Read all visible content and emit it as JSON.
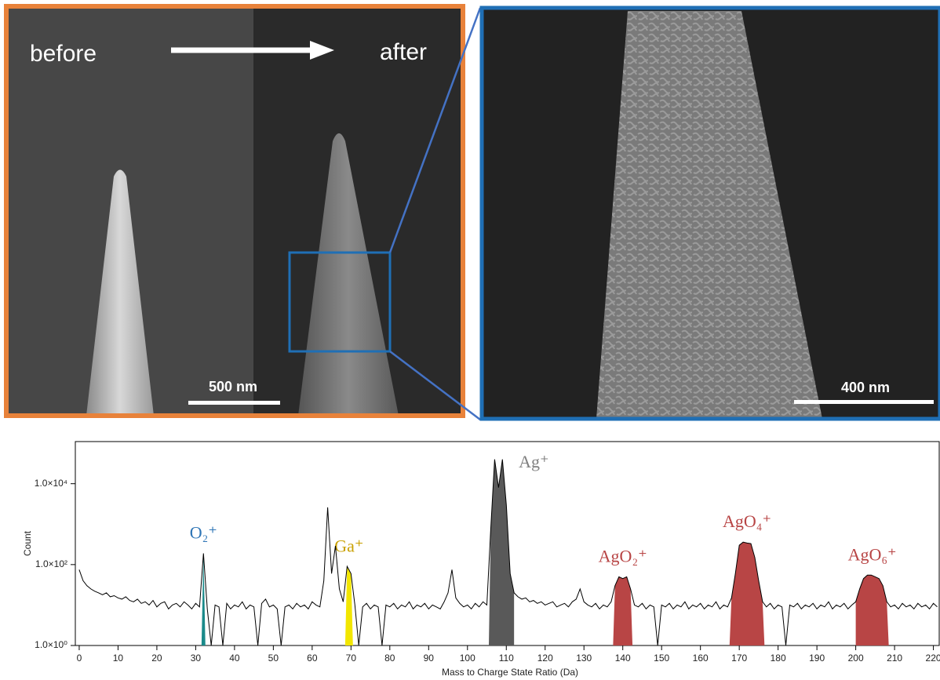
{
  "figure": {
    "before_label": "before",
    "after_label": "after",
    "scale_bar_left": "500 nm",
    "scale_bar_right": "400 nm"
  },
  "chart_data": {
    "type": "line",
    "x_label": "Mass to Charge State Ratio (Da)",
    "y_label": "Count",
    "log_y": true,
    "color": "#000000",
    "x": [
      0,
      1,
      2,
      3,
      4,
      5,
      6,
      7,
      8,
      9,
      10,
      11,
      12,
      13,
      14,
      15,
      16,
      17,
      18,
      19,
      20,
      21,
      22,
      23,
      24,
      25,
      26,
      27,
      28,
      29,
      30,
      31,
      32,
      33,
      34,
      35,
      36,
      37,
      38,
      39,
      40,
      41,
      42,
      43,
      44,
      45,
      46,
      47,
      48,
      49,
      50,
      51,
      52,
      53,
      54,
      55,
      56,
      57,
      58,
      59,
      60,
      61,
      62,
      63,
      64,
      65,
      66,
      67,
      68,
      69,
      70,
      71,
      72,
      73,
      74,
      75,
      76,
      77,
      78,
      79,
      80,
      81,
      82,
      83,
      84,
      85,
      86,
      87,
      88,
      89,
      90,
      91,
      92,
      93,
      94,
      95,
      96,
      97,
      98,
      99,
      100,
      101,
      102,
      103,
      104,
      105,
      106,
      107,
      108,
      109,
      110,
      111,
      112,
      113,
      114,
      115,
      116,
      117,
      118,
      119,
      120,
      121,
      122,
      123,
      124,
      125,
      126,
      127,
      128,
      129,
      130,
      131,
      132,
      133,
      134,
      135,
      136,
      137,
      138,
      139,
      140,
      141,
      142,
      143,
      144,
      145,
      146,
      147,
      148,
      149,
      150,
      151,
      152,
      153,
      154,
      155,
      156,
      157,
      158,
      159,
      160,
      161,
      162,
      163,
      164,
      165,
      166,
      167,
      168,
      169,
      170,
      171,
      172,
      173,
      174,
      175,
      176,
      177,
      178,
      179,
      180,
      181,
      182,
      183,
      184,
      185,
      186,
      187,
      188,
      189,
      190,
      191,
      192,
      193,
      194,
      195,
      196,
      197,
      198,
      199,
      200,
      201,
      202,
      203,
      204,
      205,
      206,
      207,
      208,
      209,
      210,
      211,
      212,
      213,
      214,
      215,
      216,
      217,
      218,
      219,
      220,
      221
    ],
    "values": [
      75,
      40,
      30,
      25,
      22,
      20,
      18,
      20,
      16,
      17,
      15,
      14,
      16,
      13,
      12,
      14,
      11,
      12,
      10,
      13,
      9,
      11,
      12,
      8,
      10,
      11,
      9,
      12,
      10,
      8,
      11,
      9,
      190,
      8,
      1,
      10,
      9,
      1,
      11,
      8,
      10,
      9,
      12,
      8,
      10,
      9,
      1,
      11,
      14,
      9,
      10,
      8,
      1,
      9,
      10,
      8,
      11,
      9,
      10,
      8,
      12,
      10,
      9,
      40,
      2600,
      60,
      290,
      25,
      12,
      90,
      60,
      10,
      1,
      9,
      11,
      8,
      10,
      9,
      1,
      10,
      9,
      11,
      8,
      10,
      9,
      12,
      8,
      10,
      9,
      11,
      8,
      10,
      9,
      8,
      12,
      20,
      75,
      15,
      11,
      9,
      10,
      8,
      11,
      9,
      12,
      10,
      800,
      40000,
      8000,
      40000,
      3000,
      60,
      20,
      16,
      14,
      15,
      12,
      13,
      11,
      12,
      10,
      11,
      12,
      9,
      10,
      11,
      9,
      12,
      14,
      25,
      12,
      10,
      9,
      11,
      8,
      10,
      9,
      12,
      30,
      50,
      45,
      50,
      25,
      10,
      9,
      11,
      8,
      10,
      9,
      1,
      10,
      9,
      11,
      8,
      10,
      9,
      12,
      8,
      10,
      9,
      11,
      8,
      10,
      9,
      12,
      8,
      10,
      9,
      15,
      60,
      300,
      360,
      340,
      330,
      150,
      40,
      12,
      9,
      11,
      8,
      10,
      9,
      1,
      10,
      9,
      11,
      8,
      10,
      9,
      11,
      8,
      10,
      9,
      12,
      8,
      10,
      9,
      11,
      8,
      10,
      12,
      25,
      45,
      55,
      55,
      50,
      45,
      30,
      12,
      9,
      10,
      8,
      11,
      9,
      10,
      8,
      11,
      9,
      10,
      8,
      11,
      9
    ],
    "xlim": [
      -1,
      221.5
    ],
    "ylim": [
      1,
      110000
    ],
    "xticks": [
      0,
      10,
      20,
      30,
      40,
      50,
      60,
      70,
      80,
      90,
      100,
      110,
      120,
      130,
      140,
      150,
      160,
      170,
      180,
      190,
      200,
      210,
      220
    ],
    "yticks": [
      {
        "value": 1,
        "label": "1.0×10⁰"
      },
      {
        "value": 100,
        "label": "1.0×10²"
      },
      {
        "value": 10000,
        "label": "1.0×10⁴"
      }
    ],
    "highlights": [
      {
        "name": "O₂⁺",
        "color": "#1a8a8a",
        "label_color": "#2e75b6",
        "xrange": [
          31.5,
          32.5
        ]
      },
      {
        "name": "Ga⁺",
        "color": "#f2e600",
        "label_color": "#c9a000",
        "xrange": [
          68.5,
          70.5
        ]
      },
      {
        "name": "Ag⁺",
        "color": "#595959",
        "label_color": "#808080",
        "xrange": [
          105.5,
          112
        ]
      },
      {
        "name": "AgO₂⁺",
        "color": "#b84545",
        "label_color": "#b84545",
        "xrange": [
          137.5,
          142.5
        ]
      },
      {
        "name": "AgO₄⁺",
        "color": "#b84545",
        "label_color": "#b84545",
        "xrange": [
          167.5,
          176.5
        ]
      },
      {
        "name": "AgO₆⁺",
        "color": "#b84545",
        "label_color": "#b84545",
        "xrange": [
          200,
          208.5
        ]
      }
    ]
  }
}
